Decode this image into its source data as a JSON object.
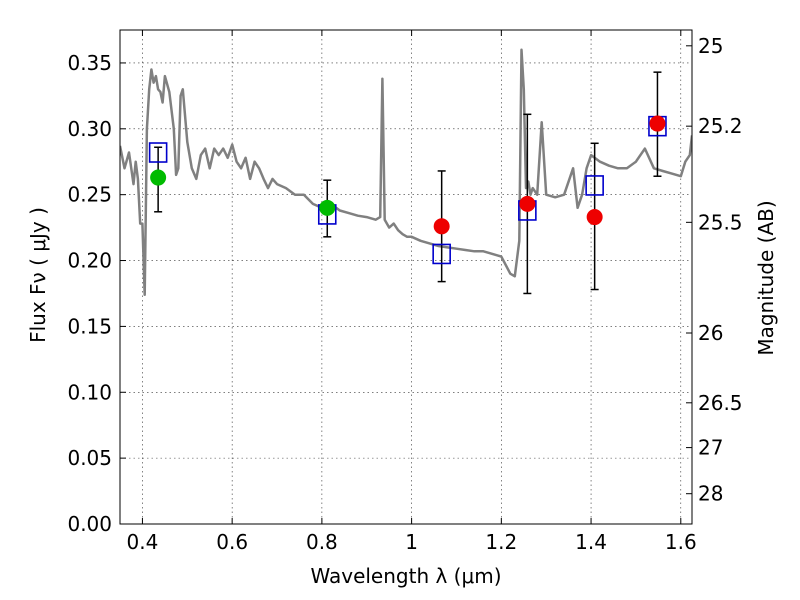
{
  "chart_data": {
    "type": "scatter",
    "xlabel": "Wavelength  λ (μm)",
    "ylabel": "Flux  Fν  ( μJy )",
    "ylabel_right": "Magnitude (AB)",
    "xlim": [
      0.35,
      1.625
    ],
    "ylim": [
      0.0,
      0.375
    ],
    "x_ticks": [
      0.4,
      0.6,
      0.8,
      1.0,
      1.2,
      1.4,
      1.6
    ],
    "x_tick_labels": [
      "0.4",
      "0.6",
      "0.8",
      "1",
      "1.2",
      "1.4",
      "1.6"
    ],
    "y_ticks": [
      0.0,
      0.05,
      0.1,
      0.15,
      0.2,
      0.25,
      0.3,
      0.35
    ],
    "y_tick_labels": [
      "0.00",
      "0.05",
      "0.10",
      "0.15",
      "0.20",
      "0.25",
      "0.30",
      "0.35"
    ],
    "right_ticks": [
      {
        "flux": 0.363,
        "label": "25"
      },
      {
        "flux": 0.302,
        "label": "25.2"
      },
      {
        "flux": 0.229,
        "label": "25.5"
      },
      {
        "flux": 0.145,
        "label": "26"
      },
      {
        "flux": 0.092,
        "label": "26.5"
      },
      {
        "flux": 0.058,
        "label": "27"
      },
      {
        "flux": 0.023,
        "label": "28"
      }
    ],
    "grid": true,
    "colors": {
      "model": "#808080",
      "green": "#00bb00",
      "red": "#ee0000",
      "blue_square": "#0000cc",
      "errorbar": "#000000"
    },
    "series": [
      {
        "kind": "model_spectrum",
        "x": [
          0.35,
          0.36,
          0.37,
          0.38,
          0.385,
          0.39,
          0.395,
          0.4,
          0.405,
          0.41,
          0.415,
          0.42,
          0.425,
          0.43,
          0.435,
          0.44,
          0.445,
          0.45,
          0.46,
          0.47,
          0.475,
          0.48,
          0.485,
          0.49,
          0.5,
          0.51,
          0.52,
          0.53,
          0.54,
          0.55,
          0.56,
          0.57,
          0.58,
          0.59,
          0.6,
          0.61,
          0.62,
          0.63,
          0.64,
          0.65,
          0.66,
          0.67,
          0.68,
          0.69,
          0.7,
          0.72,
          0.74,
          0.76,
          0.78,
          0.8,
          0.82,
          0.84,
          0.86,
          0.88,
          0.9,
          0.92,
          0.93,
          0.935,
          0.94,
          0.95,
          0.96,
          0.97,
          0.98,
          0.99,
          1.0,
          1.02,
          1.04,
          1.06,
          1.08,
          1.1,
          1.12,
          1.14,
          1.16,
          1.18,
          1.2,
          1.22,
          1.23,
          1.24,
          1.245,
          1.25,
          1.255,
          1.26,
          1.265,
          1.27,
          1.28,
          1.29,
          1.3,
          1.32,
          1.34,
          1.36,
          1.37,
          1.38,
          1.39,
          1.4,
          1.42,
          1.44,
          1.46,
          1.48,
          1.5,
          1.52,
          1.54,
          1.56,
          1.58,
          1.6,
          1.61,
          1.62,
          1.625
        ],
        "values": [
          0.287,
          0.27,
          0.282,
          0.258,
          0.275,
          0.262,
          0.228,
          0.228,
          0.174,
          0.3,
          0.33,
          0.345,
          0.335,
          0.34,
          0.33,
          0.328,
          0.32,
          0.34,
          0.328,
          0.3,
          0.265,
          0.27,
          0.325,
          0.33,
          0.29,
          0.27,
          0.262,
          0.28,
          0.285,
          0.27,
          0.285,
          0.28,
          0.285,
          0.278,
          0.288,
          0.275,
          0.27,
          0.278,
          0.262,
          0.275,
          0.27,
          0.262,
          0.255,
          0.262,
          0.258,
          0.255,
          0.25,
          0.25,
          0.243,
          0.24,
          0.243,
          0.238,
          0.236,
          0.234,
          0.233,
          0.231,
          0.233,
          0.338,
          0.231,
          0.225,
          0.228,
          0.223,
          0.22,
          0.218,
          0.218,
          0.215,
          0.213,
          0.211,
          0.21,
          0.209,
          0.208,
          0.207,
          0.207,
          0.205,
          0.203,
          0.19,
          0.188,
          0.215,
          0.36,
          0.33,
          0.255,
          0.26,
          0.25,
          0.255,
          0.25,
          0.305,
          0.25,
          0.248,
          0.25,
          0.27,
          0.24,
          0.25,
          0.27,
          0.28,
          0.275,
          0.272,
          0.27,
          0.27,
          0.275,
          0.285,
          0.27,
          0.268,
          0.266,
          0.264,
          0.275,
          0.28,
          0.295
        ]
      },
      {
        "kind": "green_points",
        "x": [
          0.435,
          0.812
        ],
        "values": [
          0.263,
          0.24
        ],
        "yerr_low": [
          0.237,
          0.218
        ],
        "yerr_high": [
          0.286,
          0.261
        ]
      },
      {
        "kind": "red_points",
        "x": [
          1.067,
          1.258,
          1.408,
          1.548
        ],
        "values": [
          0.226,
          0.243,
          0.233,
          0.304
        ],
        "yerr_low": [
          0.184,
          0.175,
          0.178,
          0.264
        ],
        "yerr_high": [
          0.268,
          0.311,
          0.289,
          0.343
        ]
      },
      {
        "kind": "blue_squares",
        "x": [
          0.435,
          0.812,
          1.067,
          1.258,
          1.408,
          1.548
        ],
        "values": [
          0.282,
          0.235,
          0.205,
          0.238,
          0.257,
          0.302
        ]
      }
    ]
  }
}
